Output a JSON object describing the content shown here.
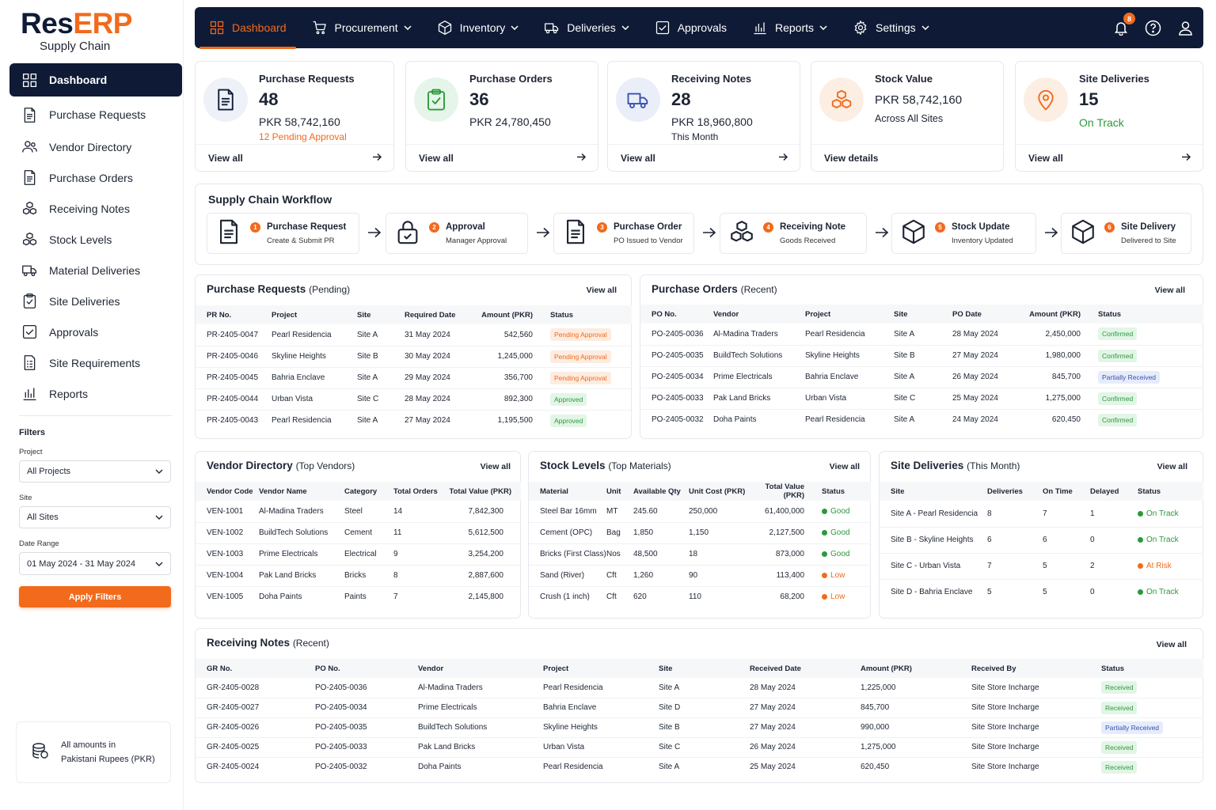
{
  "brand": {
    "res": "Res",
    "erp": "ERP",
    "tagline": "Supply Chain"
  },
  "colors": {
    "navy": "#0f1b36",
    "accent": "#f26a1b",
    "green": "#2a9a3b"
  },
  "sidebar": {
    "items": [
      {
        "label": "Dashboard",
        "icon": "grid-icon"
      },
      {
        "label": "Purchase Requests",
        "icon": "document-icon"
      },
      {
        "label": "Vendor Directory",
        "icon": "users-icon"
      },
      {
        "label": "Purchase Orders",
        "icon": "document-icon"
      },
      {
        "label": "Receiving Notes",
        "icon": "boxes-icon"
      },
      {
        "label": "Stock Levels",
        "icon": "boxes-icon"
      },
      {
        "label": "Material Deliveries",
        "icon": "truck-icon"
      },
      {
        "label": "Site Deliveries",
        "icon": "clipboard-icon"
      },
      {
        "label": "Approvals",
        "icon": "check-square-icon"
      },
      {
        "label": "Site Requirements",
        "icon": "list-icon"
      },
      {
        "label": "Reports",
        "icon": "bar-chart-icon"
      }
    ]
  },
  "filters": {
    "title": "Filters",
    "project_label": "Project",
    "project_value": "All Projects",
    "site_label": "Site",
    "site_value": "All Sites",
    "date_label": "Date Range",
    "date_value": "01 May 2024 - 31 May 2024",
    "apply": "Apply Filters"
  },
  "footer_note": {
    "line1": "All amounts in",
    "line2": "Pakistani Rupees (PKR)"
  },
  "topnav": {
    "items": [
      {
        "label": "Dashboard",
        "dropdown": false
      },
      {
        "label": "Procurement",
        "dropdown": true
      },
      {
        "label": "Inventory",
        "dropdown": true
      },
      {
        "label": "Deliveries",
        "dropdown": true
      },
      {
        "label": "Approvals",
        "dropdown": false
      },
      {
        "label": "Reports",
        "dropdown": true
      },
      {
        "label": "Settings",
        "dropdown": true
      }
    ],
    "notifications": "8"
  },
  "stats": [
    {
      "label": "Purchase Requests",
      "num": "48",
      "amount": "PKR 58,742,160",
      "sub": "12 Pending Approval",
      "link": "View all"
    },
    {
      "label": "Purchase Orders",
      "num": "36",
      "amount": "PKR 24,780,450",
      "sub": "",
      "link": "View all"
    },
    {
      "label": "Receiving Notes",
      "num": "28",
      "amount": "PKR 18,960,800",
      "sub": "This Month",
      "link": "View all"
    },
    {
      "label": "Stock Value",
      "num": "",
      "amount": "PKR 58,742,160",
      "sub": "Across All Sites",
      "link": "View details"
    },
    {
      "label": "Site Deliveries",
      "num": "15",
      "amount": "",
      "sub": "On Track",
      "link": "View all"
    }
  ],
  "workflow": {
    "title": "Supply Chain Workflow",
    "steps": [
      {
        "n": "1",
        "title": "Purchase Request",
        "desc": "Create & Submit PR"
      },
      {
        "n": "2",
        "title": "Approval",
        "desc": "Manager Approval"
      },
      {
        "n": "3",
        "title": "Purchase Order",
        "desc": "PO Issued to Vendor"
      },
      {
        "n": "4",
        "title": "Receiving Note",
        "desc": "Goods Received"
      },
      {
        "n": "5",
        "title": "Stock Update",
        "desc": "Inventory Updated"
      },
      {
        "n": "6",
        "title": "Site Delivery",
        "desc": "Delivered to Site"
      }
    ]
  },
  "pr": {
    "title": "Purchase Requests",
    "sub": "(Pending)",
    "view": "View all",
    "cols": [
      "PR No.",
      "Project",
      "Site",
      "Required Date",
      "Amount (PKR)",
      "Status"
    ],
    "rows": [
      [
        "PR-2405-0047",
        "Pearl Residencia",
        "Site A",
        "31 May 2024",
        "542,560",
        "Pending Approval"
      ],
      [
        "PR-2405-0046",
        "Skyline Heights",
        "Site B",
        "30 May 2024",
        "1,245,000",
        "Pending Approval"
      ],
      [
        "PR-2405-0045",
        "Bahria Enclave",
        "Site A",
        "29 May 2024",
        "356,700",
        "Pending Approval"
      ],
      [
        "PR-2405-0044",
        "Urban Vista",
        "Site C",
        "28 May 2024",
        "892,300",
        "Approved"
      ],
      [
        "PR-2405-0043",
        "Pearl Residencia",
        "Site A",
        "27 May 2024",
        "1,195,500",
        "Approved"
      ]
    ]
  },
  "po": {
    "title": "Purchase Orders",
    "sub": "(Recent)",
    "view": "View all",
    "cols": [
      "PO No.",
      "Vendor",
      "Project",
      "Site",
      "PO Date",
      "Amount (PKR)",
      "Status"
    ],
    "rows": [
      [
        "PO-2405-0036",
        "Al-Madina Traders",
        "Pearl Residencia",
        "Site A",
        "28 May 2024",
        "2,450,000",
        "Confirmed"
      ],
      [
        "PO-2405-0035",
        "BuildTech Solutions",
        "Skyline Heights",
        "Site B",
        "27 May 2024",
        "1,980,000",
        "Confirmed"
      ],
      [
        "PO-2405-0034",
        "Prime Electricals",
        "Bahria Enclave",
        "Site A",
        "26 May 2024",
        "845,700",
        "Partially Received"
      ],
      [
        "PO-2405-0033",
        "Pak Land Bricks",
        "Urban Vista",
        "Site C",
        "25 May 2024",
        "1,275,000",
        "Confirmed"
      ],
      [
        "PO-2405-0032",
        "Doha Paints",
        "Pearl Residencia",
        "Site A",
        "24 May 2024",
        "620,450",
        "Confirmed"
      ]
    ]
  },
  "vendors": {
    "title": "Vendor Directory",
    "sub": "(Top Vendors)",
    "view": "View all",
    "cols": [
      "Vendor Code",
      "Vendor Name",
      "Category",
      "Total Orders",
      "Total Value (PKR)"
    ],
    "rows": [
      [
        "VEN-1001",
        "Al-Madina Traders",
        "Steel",
        "14",
        "7,842,300"
      ],
      [
        "VEN-1002",
        "BuildTech Solutions",
        "Cement",
        "11",
        "5,612,500"
      ],
      [
        "VEN-1003",
        "Prime Electricals",
        "Electrical",
        "9",
        "3,254,200"
      ],
      [
        "VEN-1004",
        "Pak Land Bricks",
        "Bricks",
        "8",
        "2,887,600"
      ],
      [
        "VEN-1005",
        "Doha Paints",
        "Paints",
        "7",
        "2,145,800"
      ]
    ]
  },
  "stock": {
    "title": "Stock Levels",
    "sub": "(Top Materials)",
    "view": "View all",
    "cols": [
      "Material",
      "Unit",
      "Available Qty",
      "Unit Cost (PKR)",
      "Total Value (PKR)",
      "Status"
    ],
    "rows": [
      [
        "Steel Bar 16mm",
        "MT",
        "245.60",
        "250,000",
        "61,400,000",
        "Good"
      ],
      [
        "Cement (OPC)",
        "Bag",
        "1,850",
        "1,150",
        "2,127,500",
        "Good"
      ],
      [
        "Bricks (First Class)",
        "Nos",
        "48,500",
        "18",
        "873,000",
        "Good"
      ],
      [
        "Sand (River)",
        "Cft",
        "1,260",
        "90",
        "113,400",
        "Low"
      ],
      [
        "Crush (1 inch)",
        "Cft",
        "620",
        "110",
        "68,200",
        "Low"
      ]
    ]
  },
  "deliveries": {
    "title": "Site Deliveries",
    "sub": "(This Month)",
    "view": "View all",
    "cols": [
      "Site",
      "Deliveries",
      "On Time",
      "Delayed",
      "Status"
    ],
    "rows": [
      [
        "Site A - Pearl Residencia",
        "8",
        "7",
        "1",
        "On Track"
      ],
      [
        "Site B - Skyline Heights",
        "6",
        "6",
        "0",
        "On Track"
      ],
      [
        "Site C - Urban Vista",
        "7",
        "5",
        "2",
        "At Risk"
      ],
      [
        "Site D - Bahria Enclave",
        "5",
        "5",
        "0",
        "On Track"
      ]
    ]
  },
  "grn": {
    "title": "Receiving Notes",
    "sub": "(Recent)",
    "view": "View all",
    "cols": [
      "GR No.",
      "PO No.",
      "Vendor",
      "Project",
      "Site",
      "Received Date",
      "Amount (PKR)",
      "Received By",
      "Status"
    ],
    "rows": [
      [
        "GR-2405-0028",
        "PO-2405-0036",
        "Al-Madina Traders",
        "Pearl Residencia",
        "Site A",
        "28 May 2024",
        "1,225,000",
        "Site Store Incharge",
        "Received"
      ],
      [
        "GR-2405-0027",
        "PO-2405-0034",
        "Prime Electricals",
        "Bahria Enclave",
        "Site D",
        "27 May 2024",
        "845,700",
        "Site Store Incharge",
        "Received"
      ],
      [
        "GR-2405-0026",
        "PO-2405-0035",
        "BuildTech Solutions",
        "Skyline Heights",
        "Site B",
        "27 May 2024",
        "990,000",
        "Site Store Incharge",
        "Partially Received"
      ],
      [
        "GR-2405-0025",
        "PO-2405-0033",
        "Pak Land Bricks",
        "Urban Vista",
        "Site C",
        "26 May 2024",
        "1,275,000",
        "Site Store Incharge",
        "Received"
      ],
      [
        "GR-2405-0024",
        "PO-2405-0032",
        "Doha Paints",
        "Pearl Residencia",
        "Site A",
        "25 May 2024",
        "620,450",
        "Site Store Incharge",
        "Received"
      ]
    ]
  }
}
